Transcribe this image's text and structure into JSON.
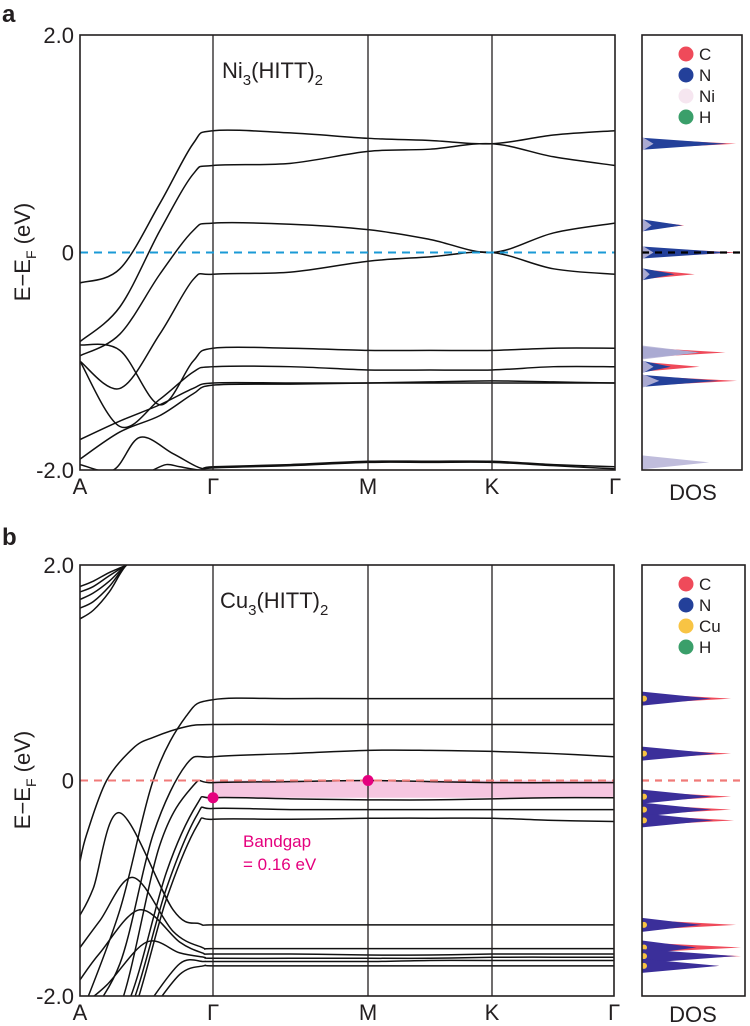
{
  "chart_data": [
    {
      "panel": "a",
      "type": "line",
      "title_main": "Ni",
      "title_sub1": "3",
      "title_mid": "(HITT)",
      "title_sub2": "2",
      "ylabel_main": "E−E",
      "ylabel_sub": "F",
      "ylabel_tail": " (eV)",
      "ylim": [
        -2.0,
        2.0
      ],
      "yticks": [
        {
          "value": 2.0,
          "label": "2.0"
        },
        {
          "value": 0,
          "label": "0"
        },
        {
          "value": -2.0,
          "label": "-2.0"
        }
      ],
      "kpoints": [
        "A",
        "Γ",
        "M",
        "K",
        "Γ"
      ],
      "kpoint_positions": [
        0,
        1,
        2,
        3,
        4
      ],
      "fermi_line": {
        "value": 0,
        "color": "#1a9ad6"
      },
      "bands": [
        {
          "x": [
            0,
            0.3,
            0.6,
            0.85,
            1,
            1.5,
            2,
            2.5,
            3,
            3.5,
            4
          ],
          "y": [
            -0.28,
            -0.15,
            0.45,
            1.0,
            1.12,
            1.1,
            1.05,
            1.03,
            1.0,
            1.08,
            1.12
          ]
        },
        {
          "x": [
            0,
            0.3,
            0.6,
            0.85,
            1,
            1.5,
            2,
            2.5,
            3,
            3.5,
            4
          ],
          "y": [
            -0.82,
            -0.5,
            0.2,
            0.72,
            0.8,
            0.82,
            0.93,
            0.95,
            1.0,
            0.88,
            0.8
          ]
        },
        {
          "x": [
            0,
            0.3,
            0.6,
            0.85,
            1,
            1.5,
            2,
            2.5,
            3,
            3.5,
            4
          ],
          "y": [
            -0.95,
            -0.75,
            -0.2,
            0.2,
            0.27,
            0.26,
            0.21,
            0.12,
            0.0,
            0.18,
            0.27
          ]
        },
        {
          "x": [
            0,
            0.3,
            0.6,
            0.85,
            1,
            1.5,
            2,
            2.5,
            3,
            3.5,
            4
          ],
          "y": [
            -1.0,
            -1.25,
            -0.75,
            -0.25,
            -0.2,
            -0.18,
            -0.08,
            -0.04,
            0.0,
            -0.15,
            -0.2
          ]
        },
        {
          "x": [
            0,
            0.3,
            0.6,
            0.85,
            1,
            1.5,
            2,
            2.5,
            3,
            3.5,
            4
          ],
          "y": [
            -0.85,
            -0.9,
            -1.4,
            -1.0,
            -0.88,
            -0.88,
            -0.9,
            -0.9,
            -0.9,
            -0.88,
            -0.88
          ]
        },
        {
          "x": [
            0,
            0.3,
            0.6,
            0.85,
            1,
            1.5,
            2,
            2.5,
            3,
            3.5,
            4
          ],
          "y": [
            -1.0,
            -1.6,
            -1.35,
            -1.1,
            -1.05,
            -1.05,
            -1.08,
            -1.08,
            -1.08,
            -1.05,
            -1.05
          ]
        },
        {
          "x": [
            0,
            0.3,
            0.6,
            0.85,
            1,
            1.5,
            2,
            2.5,
            3,
            3.5,
            4
          ],
          "y": [
            -1.72,
            -1.55,
            -1.4,
            -1.25,
            -1.2,
            -1.2,
            -1.2,
            -1.2,
            -1.2,
            -1.2,
            -1.2
          ]
        },
        {
          "x": [
            0,
            0.3,
            0.6,
            0.85,
            1,
            1.5,
            2,
            2.5,
            3,
            3.5,
            4
          ],
          "y": [
            -1.9,
            -1.65,
            -1.5,
            -1.3,
            -1.22,
            -1.21,
            -1.2,
            -1.19,
            -1.18,
            -1.19,
            -1.2
          ]
        },
        {
          "x": [
            0,
            0.25,
            0.45,
            0.7,
            0.9,
            1,
            1.5,
            2,
            2.5,
            3,
            3.5,
            4
          ],
          "y": [
            -1.95,
            -2.0,
            -1.7,
            -1.85,
            -1.98,
            -1.97,
            -1.95,
            -1.92,
            -1.92,
            -1.92,
            -1.95,
            -1.97
          ]
        },
        {
          "x": [
            0.55,
            0.65,
            0.75,
            0.9,
            1,
            1.5,
            2,
            2.5,
            3,
            3.5,
            4
          ],
          "y": [
            -2.0,
            -1.95,
            -1.97,
            -2.0,
            -1.98,
            -1.96,
            -1.93,
            -1.93,
            -1.93,
            -1.96,
            -1.99
          ]
        }
      ],
      "dos": {
        "xlabel": "DOS",
        "legend": [
          {
            "label": "C",
            "color": "#ef4a5a"
          },
          {
            "label": "N",
            "color": "#23409a"
          },
          {
            "label": "Ni",
            "color": "#f6e6f0"
          },
          {
            "label": "H",
            "color": "#3a9f6a"
          }
        ],
        "peaks": [
          {
            "energy": 1.0,
            "N": 0.88,
            "C": 0.98,
            "Ni": 0.12
          },
          {
            "energy": 0.25,
            "N": 0.42,
            "C": 0.44,
            "Ni": 0.1
          },
          {
            "energy": 0.0,
            "N": 0.92,
            "C": 1.0,
            "Ni": 0.12
          },
          {
            "energy": -0.2,
            "N": 0.34,
            "C": 0.55,
            "Ni": 0.08
          },
          {
            "energy": -0.92,
            "N": 0.6,
            "C": 0.87,
            "Ni": 0.6
          },
          {
            "energy": -1.05,
            "N": 0.3,
            "C": 0.6,
            "Ni": 0.12
          },
          {
            "energy": -1.18,
            "N": 0.8,
            "C": 0.99,
            "Ni": 0.18
          },
          {
            "energy": -1.93,
            "N": 0.0,
            "C": 0.0,
            "Ni": 0.7
          }
        ],
        "fermi_line_color": "#000000"
      }
    },
    {
      "panel": "b",
      "type": "line",
      "title_main": "Cu",
      "title_sub1": "3",
      "title_mid": "(HITT)",
      "title_sub2": "2",
      "ylabel_main": "E−E",
      "ylabel_sub": "F",
      "ylabel_tail": " (eV)",
      "ylim": [
        -2.0,
        2.0
      ],
      "yticks": [
        {
          "value": 2.0,
          "label": "2.0"
        },
        {
          "value": 0,
          "label": "0"
        },
        {
          "value": -2.0,
          "label": "-2.0"
        }
      ],
      "kpoints": [
        "A",
        "Γ",
        "M",
        "K",
        "Γ"
      ],
      "kpoint_positions": [
        0,
        1,
        2,
        3,
        4
      ],
      "fermi_line": {
        "value": 0,
        "color": "#f07a78"
      },
      "bandgap": {
        "label_line1": "Bandgap",
        "label_line2": "= 0.16 eV",
        "value_eV": 0.16,
        "vbm": {
          "x": 1,
          "y": -0.16
        },
        "cbm": {
          "x": 2,
          "y": 0.0
        },
        "color": "#e5007e",
        "fill": "#f6c6e0"
      },
      "bands": [
        {
          "x": [
            0,
            0.1,
            0.22,
            0.35,
            0.5
          ],
          "y": [
            1.8,
            1.85,
            1.93,
            2.0,
            2.1
          ]
        },
        {
          "x": [
            0,
            0.1,
            0.22,
            0.35,
            0.5
          ],
          "y": [
            1.75,
            1.8,
            1.9,
            2.0,
            2.1
          ]
        },
        {
          "x": [
            0,
            0.1,
            0.22,
            0.35,
            0.5
          ],
          "y": [
            1.68,
            1.74,
            1.85,
            2.0,
            2.1
          ]
        },
        {
          "x": [
            0,
            0.1,
            0.22,
            0.35,
            0.5
          ],
          "y": [
            1.6,
            1.66,
            1.8,
            2.0,
            2.1
          ]
        },
        {
          "x": [
            0,
            0.1,
            0.22,
            0.35,
            0.5
          ],
          "y": [
            1.5,
            1.58,
            1.75,
            2.0,
            2.1
          ]
        },
        {
          "x": [
            0,
            0.3,
            0.55,
            0.8,
            1,
            1.5,
            2,
            2.5,
            3,
            3.5,
            4
          ],
          "y": [
            -2.2,
            -1.2,
            0.0,
            0.6,
            0.75,
            0.76,
            0.76,
            0.76,
            0.76,
            0.76,
            0.76
          ]
        },
        {
          "x": [
            0,
            0.3,
            0.55,
            0.8,
            1,
            1.5,
            2,
            2.5,
            3,
            3.5,
            4
          ],
          "y": [
            -2.3,
            -1.7,
            -0.5,
            0.15,
            0.22,
            0.25,
            0.28,
            0.28,
            0.27,
            0.25,
            0.22
          ]
        },
        {
          "x": [
            0,
            0.3,
            0.6,
            0.85,
            1,
            1.5,
            2,
            2.5,
            3,
            3.5,
            4
          ],
          "y": [
            -2.5,
            -2.1,
            -0.6,
            -0.05,
            -0.02,
            -0.01,
            0.0,
            -0.01,
            -0.02,
            -0.02,
            -0.02
          ]
        },
        {
          "x": [
            0,
            0.35,
            0.65,
            0.88,
            1,
            1.5,
            2,
            2.5,
            3,
            3.5,
            4
          ],
          "y": [
            -2.6,
            -2.1,
            -0.85,
            -0.22,
            -0.16,
            -0.17,
            -0.18,
            -0.18,
            -0.17,
            -0.16,
            -0.16
          ]
        },
        {
          "x": [
            0,
            0.35,
            0.65,
            0.88,
            1,
            1.5,
            2,
            2.5,
            3,
            3.5,
            4
          ],
          "y": [
            -2.6,
            -2.2,
            -1.0,
            -0.32,
            -0.26,
            -0.27,
            -0.27,
            -0.27,
            -0.27,
            -0.27,
            -0.27
          ]
        },
        {
          "x": [
            0,
            0.35,
            0.65,
            0.88,
            1,
            1.5,
            2,
            2.5,
            3,
            3.5,
            4
          ],
          "y": [
            -2.6,
            -2.3,
            -1.1,
            -0.42,
            -0.36,
            -0.36,
            -0.35,
            -0.35,
            -0.35,
            -0.37,
            -0.38
          ]
        },
        {
          "x": [
            0,
            0.05,
            0.2,
            0.4,
            0.55,
            0.8,
            1,
            1.5,
            2,
            2.5,
            3,
            3.5,
            4
          ],
          "y": [
            -0.75,
            -0.5,
            0.0,
            0.3,
            0.4,
            0.5,
            0.52,
            0.52,
            0.52,
            0.52,
            0.52,
            0.52,
            0.52
          ]
        },
        {
          "x": [
            0,
            0.1,
            0.3,
            0.7,
            0.9,
            1,
            1.5,
            2,
            2.5,
            3,
            3.5,
            4
          ],
          "y": [
            -1.25,
            -1.0,
            -0.3,
            -1.2,
            -1.33,
            -1.34,
            -1.34,
            -1.34,
            -1.34,
            -1.34,
            -1.34,
            -1.34
          ]
        },
        {
          "x": [
            0,
            0.15,
            0.4,
            0.7,
            0.92,
            1,
            1.5,
            2,
            2.5,
            3,
            3.5,
            4
          ],
          "y": [
            -1.55,
            -1.3,
            -0.9,
            -1.4,
            -1.55,
            -1.56,
            -1.56,
            -1.56,
            -1.56,
            -1.56,
            -1.56,
            -1.56
          ]
        },
        {
          "x": [
            0,
            0.15,
            0.45,
            0.75,
            0.92,
            1,
            1.5,
            2,
            2.5,
            3,
            3.5,
            4
          ],
          "y": [
            -1.85,
            -1.6,
            -1.2,
            -1.5,
            -1.6,
            -1.61,
            -1.61,
            -1.62,
            -1.62,
            -1.61,
            -1.61,
            -1.61
          ]
        },
        {
          "x": [
            0,
            0.2,
            0.5,
            0.75,
            0.93,
            1,
            1.5,
            2,
            2.5,
            3,
            3.5,
            4
          ],
          "y": [
            -2.1,
            -1.9,
            -1.5,
            -1.6,
            -1.64,
            -1.65,
            -1.65,
            -1.65,
            -1.65,
            -1.64,
            -1.64,
            -1.64
          ]
        },
        {
          "x": [
            0.5,
            0.75,
            0.93,
            1,
            1.5,
            2,
            2.5,
            3,
            3.5,
            4
          ],
          "y": [
            -2.1,
            -1.7,
            -1.68,
            -1.68,
            -1.68,
            -1.68,
            -1.67,
            -1.67,
            -1.67,
            -1.67
          ]
        },
        {
          "x": [
            0.5,
            0.75,
            0.93,
            1,
            1.5,
            2,
            2.5,
            3,
            3.5,
            4
          ],
          "y": [
            -2.2,
            -1.8,
            -1.72,
            -1.72,
            -1.72,
            -1.72,
            -1.72,
            -1.72,
            -1.72,
            -1.72
          ]
        }
      ],
      "dos": {
        "xlabel": "DOS",
        "legend": [
          {
            "label": "C",
            "color": "#ef4a5a"
          },
          {
            "label": "N",
            "color": "#23409a"
          },
          {
            "label": "Cu",
            "color": "#f8c444"
          },
          {
            "label": "H",
            "color": "#3a9f6a"
          }
        ],
        "peaks": [
          {
            "energy": 0.76,
            "N": 0.7,
            "C": 0.9
          },
          {
            "energy": 0.25,
            "N": 0.75,
            "C": 0.9
          },
          {
            "energy": -0.15,
            "N": 0.7,
            "C": 0.9
          },
          {
            "energy": -0.27,
            "N": 0.7,
            "C": 0.9
          },
          {
            "energy": -0.37,
            "N": 0.72,
            "C": 0.93
          },
          {
            "energy": -1.34,
            "N": 0.6,
            "C": 0.95
          },
          {
            "energy": -1.55,
            "N": 0.55,
            "C": 1.0
          },
          {
            "energy": -1.63,
            "N": 0.95,
            "C": 1.0
          },
          {
            "energy": -1.72,
            "N": 0.78,
            "C": 0.78
          }
        ],
        "fermi_line_color": "#f07a78"
      }
    }
  ]
}
